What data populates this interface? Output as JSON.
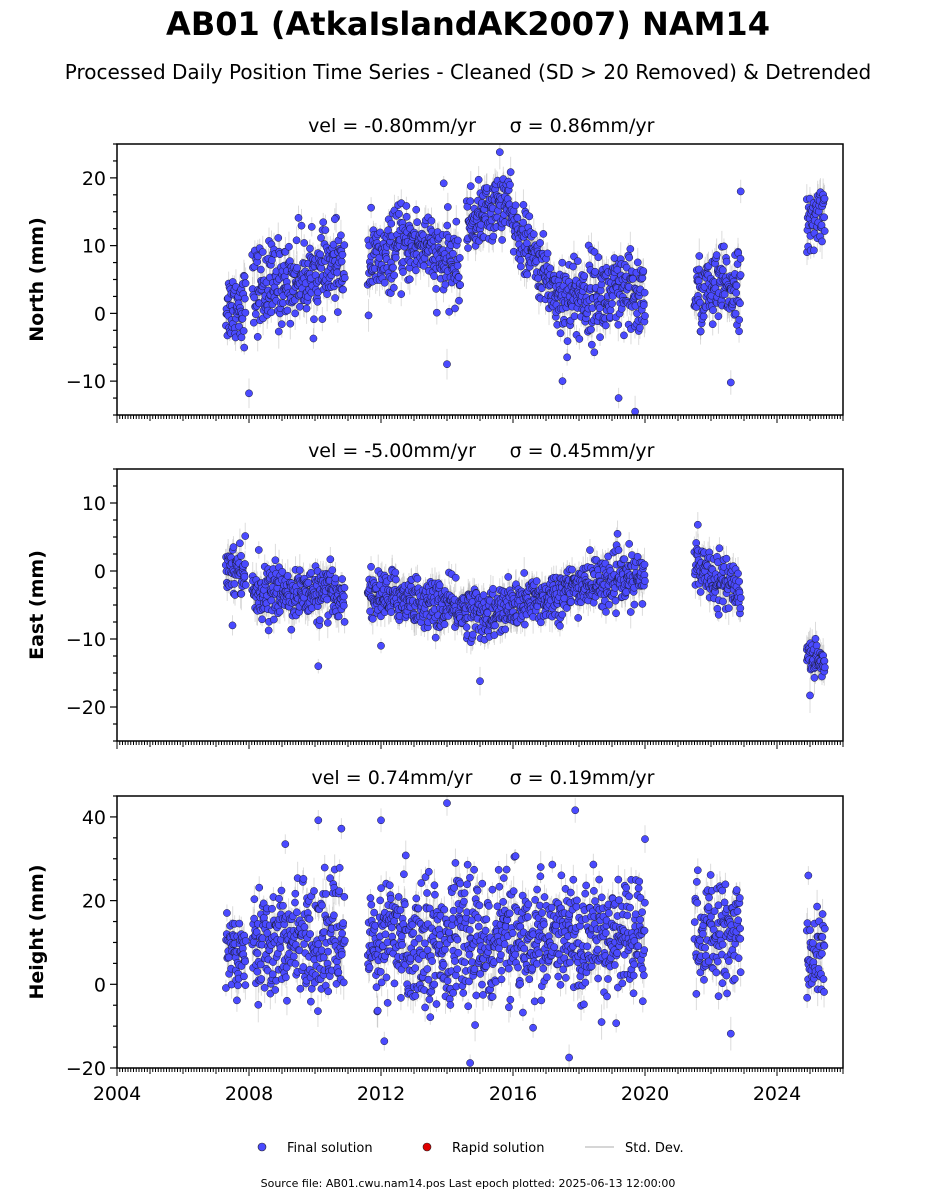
{
  "title": "AB01 (AtkaIslandAK2007) NAM14",
  "subtitle": "Processed Daily Position Time Series - Cleaned (SD > 20 Removed) & Detrended",
  "source_note": "Source file: AB01.cwu.nam14.pos  Last epoch plotted: 2025-06-13 12:00:00",
  "legend": {
    "final": "Final solution",
    "rapid": "Rapid solution",
    "std": "Std. Dev."
  },
  "colors": {
    "final": "#4a4aff",
    "rapid": "#e00000",
    "std": "#9a9a9a"
  },
  "chart_data": [
    {
      "type": "scatter",
      "panel": "north",
      "title_vel": "vel = -0.80mm/yr",
      "title_sigma": "σ = 0.86mm/yr",
      "ylabel": "North (mm)",
      "xlim": [
        2004,
        2026
      ],
      "ylim": [
        -15,
        25
      ],
      "yticks": [
        -10,
        0,
        10,
        20
      ],
      "ytick_labels": [
        "−10",
        "0",
        "10",
        "20"
      ],
      "segments": [
        {
          "x": [
            2007.3,
            2007.9
          ],
          "y": [
            1.0,
            1.5
          ],
          "spread": 3.0
        },
        {
          "x": [
            2008.1,
            2009.1
          ],
          "y": [
            3.5,
            4.5
          ],
          "spread": 3.5
        },
        {
          "x": [
            2009.1,
            2010.9
          ],
          "y": [
            4.5,
            7.0
          ],
          "spread": 3.0
        },
        {
          "x": [
            2011.6,
            2012.3
          ],
          "y": [
            7.5,
            8.0
          ],
          "spread": 3.0
        },
        {
          "x": [
            2012.3,
            2013.5
          ],
          "y": [
            9.5,
            10.5
          ],
          "spread": 3.0
        },
        {
          "x": [
            2013.5,
            2014.4
          ],
          "y": [
            8.0,
            7.0
          ],
          "spread": 3.0
        },
        {
          "x": [
            2014.6,
            2015.9
          ],
          "y": [
            13.0,
            17.0
          ],
          "spread": 2.5
        },
        {
          "x": [
            2015.9,
            2017.3
          ],
          "y": [
            14.0,
            3.0
          ],
          "spread": 2.5
        },
        {
          "x": [
            2017.3,
            2020.0
          ],
          "y": [
            2.5,
            2.5
          ],
          "spread": 3.5
        },
        {
          "x": [
            2021.5,
            2022.9
          ],
          "y": [
            2.5,
            4.5
          ],
          "spread": 3.0
        },
        {
          "x": [
            2024.9,
            2025.45
          ],
          "y": [
            12.0,
            16.0
          ],
          "spread": 2.5
        }
      ],
      "outliers": [
        {
          "x": 2008.0,
          "y": -11.8
        },
        {
          "x": 2015.6,
          "y": 23.8
        },
        {
          "x": 2019.2,
          "y": -12.5
        },
        {
          "x": 2019.7,
          "y": -14.5
        },
        {
          "x": 2022.6,
          "y": -10.2
        },
        {
          "x": 2022.9,
          "y": 18.0
        },
        {
          "x": 2014.0,
          "y": -7.5
        },
        {
          "x": 2013.9,
          "y": 19.2
        },
        {
          "x": 2011.7,
          "y": 15.6
        },
        {
          "x": 2017.5,
          "y": -10.0
        },
        {
          "x": 2010.6,
          "y": 13.9
        },
        {
          "x": 2009.5,
          "y": 14.1
        }
      ]
    },
    {
      "type": "scatter",
      "panel": "east",
      "title_vel": "vel = -5.00mm/yr",
      "title_sigma": "σ = 0.45mm/yr",
      "ylabel": "East (mm)",
      "xlim": [
        2004,
        2026
      ],
      "ylim": [
        -25,
        15
      ],
      "yticks": [
        -20,
        -10,
        0,
        10
      ],
      "ytick_labels": [
        "−20",
        "−10",
        "0",
        "10"
      ],
      "segments": [
        {
          "x": [
            2007.3,
            2007.9
          ],
          "y": [
            0.5,
            0.5
          ],
          "spread": 2.0
        },
        {
          "x": [
            2008.1,
            2010.9
          ],
          "y": [
            -3.0,
            -3.5
          ],
          "spread": 2.0
        },
        {
          "x": [
            2011.6,
            2013.0
          ],
          "y": [
            -3.5,
            -4.0
          ],
          "spread": 2.0
        },
        {
          "x": [
            2013.0,
            2015.5
          ],
          "y": [
            -4.5,
            -6.5
          ],
          "spread": 2.0
        },
        {
          "x": [
            2015.5,
            2018.0
          ],
          "y": [
            -6.0,
            -2.5
          ],
          "spread": 2.0
        },
        {
          "x": [
            2018.0,
            2020.0
          ],
          "y": [
            -2.0,
            -1.0
          ],
          "spread": 2.0
        },
        {
          "x": [
            2021.5,
            2022.9
          ],
          "y": [
            1.0,
            -3.0
          ],
          "spread": 2.0
        },
        {
          "x": [
            2024.9,
            2025.45
          ],
          "y": [
            -12.0,
            -13.5
          ],
          "spread": 1.5
        }
      ],
      "outliers": [
        {
          "x": 2010.1,
          "y": -14.0
        },
        {
          "x": 2015.0,
          "y": -16.2
        },
        {
          "x": 2025.0,
          "y": -18.3
        },
        {
          "x": 2021.6,
          "y": 6.8
        },
        {
          "x": 2007.5,
          "y": -8.0
        },
        {
          "x": 2012.0,
          "y": -11.0
        }
      ]
    },
    {
      "type": "scatter",
      "panel": "height",
      "title_vel": "vel = 0.74mm/yr",
      "title_sigma": "σ = 0.19mm/yr",
      "ylabel": "Height (mm)",
      "xlim": [
        2004,
        2026
      ],
      "ylim": [
        -20,
        45
      ],
      "yticks": [
        -20,
        0,
        20,
        40
      ],
      "ytick_labels": [
        "−20",
        "0",
        "20",
        "40"
      ],
      "xticks": [
        2004,
        2008,
        2012,
        2016,
        2020,
        2024
      ],
      "xtick_labels": [
        "2004",
        "2008",
        "2012",
        "2016",
        "2020",
        "2024"
      ],
      "segments": [
        {
          "x": [
            2007.3,
            2007.9
          ],
          "y": [
            8.0,
            10.0
          ],
          "spread": 6.0
        },
        {
          "x": [
            2008.1,
            2010.9
          ],
          "y": [
            10.0,
            11.0
          ],
          "spread": 7.0
        },
        {
          "x": [
            2011.6,
            2020.0
          ],
          "y": [
            10.0,
            11.0
          ],
          "spread": 8.0
        },
        {
          "x": [
            2021.5,
            2022.9
          ],
          "y": [
            12.0,
            11.0
          ],
          "spread": 7.0
        },
        {
          "x": [
            2024.9,
            2025.45
          ],
          "y": [
            7.0,
            7.0
          ],
          "spread": 5.0
        }
      ],
      "outliers": [
        {
          "x": 2014.0,
          "y": 43.3
        },
        {
          "x": 2012.0,
          "y": 39.2
        },
        {
          "x": 2010.1,
          "y": 39.2
        },
        {
          "x": 2014.7,
          "y": -18.8
        },
        {
          "x": 2020.0,
          "y": 34.7
        },
        {
          "x": 2009.1,
          "y": 33.5
        },
        {
          "x": 2017.7,
          "y": -17.5
        },
        {
          "x": 2022.6,
          "y": -11.8
        },
        {
          "x": 2012.1,
          "y": -13.6
        },
        {
          "x": 2024.95,
          "y": 26.0
        },
        {
          "x": 2010.8,
          "y": 37.2
        }
      ]
    }
  ]
}
